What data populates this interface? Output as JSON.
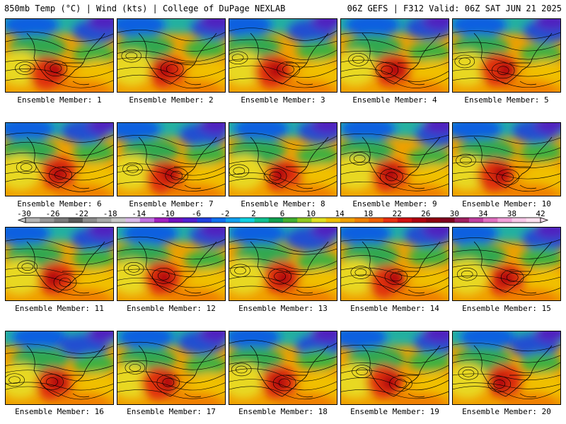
{
  "header": {
    "left": "850mb Temp (°C) | Wind (kts) | College of DuPage NEXLAB",
    "right": "06Z GEFS | F312 Valid: 06Z SAT JUN 21 2025"
  },
  "member_prefix": "Ensemble Member: ",
  "members": [
    "1",
    "2",
    "3",
    "4",
    "5",
    "6",
    "7",
    "8",
    "9",
    "10",
    "11",
    "12",
    "13",
    "14",
    "15",
    "16",
    "17",
    "18",
    "19",
    "20"
  ],
  "colorbar": {
    "ticks": [
      "-30",
      "-26",
      "-22",
      "-18",
      "-14",
      "-10",
      "-6",
      "-2",
      "2",
      "6",
      "10",
      "14",
      "18",
      "22",
      "26",
      "30",
      "34",
      "38",
      "42"
    ],
    "colors": [
      "#b4b4b4",
      "#969696",
      "#7a7a7a",
      "#5a5a5a",
      "#8c8c8c",
      "#a8a8a8",
      "#c8c8c8",
      "#d8b8e8",
      "#c070e0",
      "#a020c0",
      "#7010c0",
      "#5020d0",
      "#2040e0",
      "#1070f0",
      "#10a0f0",
      "#10d0e0",
      "#10c090",
      "#10a050",
      "#40b030",
      "#90c820",
      "#e0e020",
      "#f0c000",
      "#f0a000",
      "#f08000",
      "#f06000",
      "#e83010",
      "#d01010",
      "#b00010",
      "#900010",
      "#800020",
      "#a02060",
      "#c040a0",
      "#e070c0",
      "#f0a0d8",
      "#f8c8e8",
      "#fce0f0"
    ]
  },
  "icons": {
    "colorbar_left_arrow": "triangle-left",
    "colorbar_right_arrow": "triangle-right"
  }
}
